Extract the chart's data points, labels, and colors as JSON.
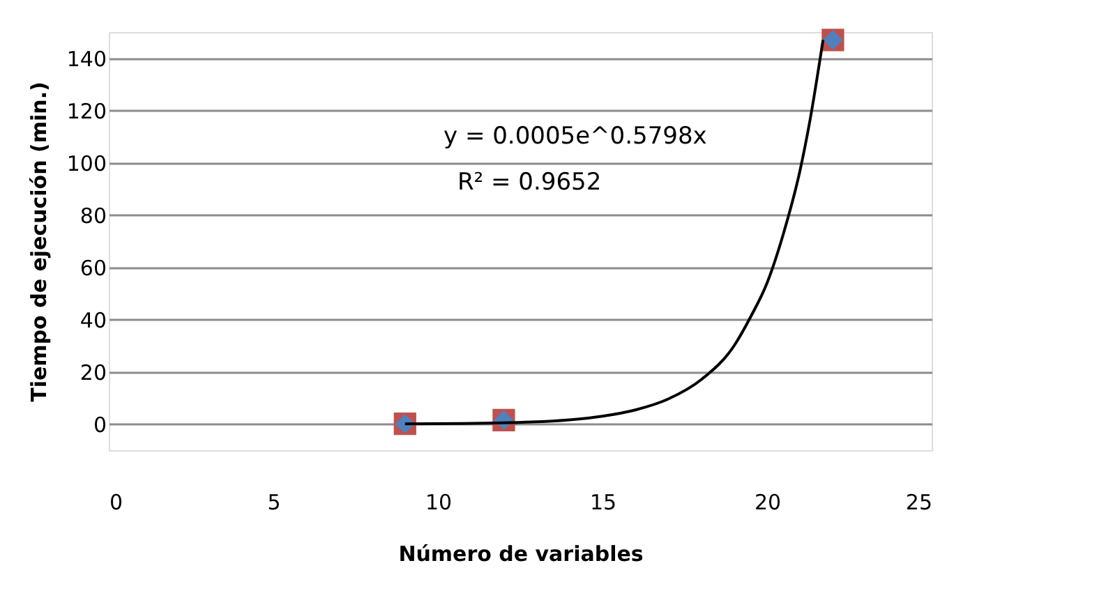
{
  "chart_data": {
    "type": "scatter",
    "xlabel": "Número de variables",
    "ylabel": "Tiempo de ejecución (min.)",
    "x": [
      9,
      12,
      22
    ],
    "series": [
      {
        "color": "#c0504d",
        "values": [
          0.1,
          1.5,
          147
        ],
        "marker": "square"
      },
      {
        "color": "#4f81bd",
        "values": [
          0.1,
          1.5,
          147
        ],
        "marker": "diamond"
      },
      {
        "type": "line",
        "color": "#000000",
        "marker": "none",
        "x": [
          9,
          12,
          14,
          15,
          16,
          17,
          18,
          19,
          19.5,
          20,
          20.5,
          21,
          21.3,
          21.7
        ],
        "values": [
          0.1,
          0.5,
          1.6,
          3.0,
          5.4,
          9.6,
          17,
          30,
          41,
          54,
          73,
          97,
          116,
          147
        ]
      }
    ],
    "xlim": [
      0,
      25
    ],
    "xticks": [
      0,
      5,
      10,
      15,
      20,
      25
    ],
    "ylim": [
      -10,
      150
    ],
    "yticks": [
      0,
      20,
      40,
      60,
      80,
      100,
      120,
      140
    ],
    "grid": "y",
    "legend": false,
    "annotations": [
      "y = 0.0005e^0.5798x",
      "R² = 0.9652"
    ]
  }
}
